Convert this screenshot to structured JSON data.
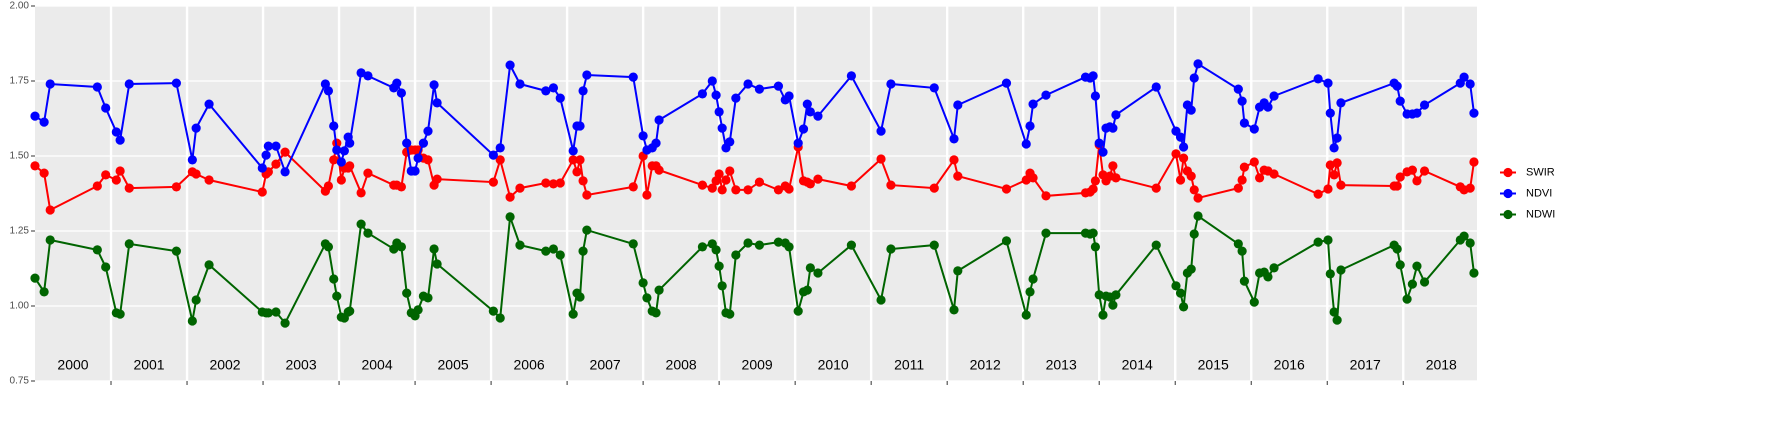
{
  "chart_data": {
    "type": "line",
    "x": [
      2000.0,
      2000.12,
      2000.2,
      2000.82,
      2000.93,
      2001.07,
      2001.12,
      2001.24,
      2001.86,
      2002.07,
      2002.12,
      2002.29,
      2002.99,
      2003.04,
      2003.07,
      2003.17,
      2003.29,
      2003.82,
      2003.86,
      2003.93,
      2003.97,
      2004.03,
      2004.07,
      2004.12,
      2004.14,
      2004.29,
      2004.38,
      2004.72,
      2004.76,
      2004.82,
      2004.89,
      2004.95,
      2005.0,
      2005.04,
      2005.11,
      2005.17,
      2005.25,
      2005.29,
      2006.03,
      2006.12,
      2006.25,
      2006.38,
      2006.72,
      2006.82,
      2006.91,
      2007.08,
      2007.13,
      2007.17,
      2007.21,
      2007.26,
      2007.87,
      2008.0,
      2008.05,
      2008.12,
      2008.17,
      2008.21,
      2008.78,
      2008.91,
      2008.96,
      2009.0,
      2009.04,
      2009.09,
      2009.14,
      2009.22,
      2009.38,
      2009.53,
      2009.78,
      2009.87,
      2009.92,
      2010.04,
      2010.11,
      2010.16,
      2010.2,
      2010.3,
      2010.74,
      2011.13,
      2011.26,
      2011.83,
      2012.09,
      2012.14,
      2012.78,
      2013.04,
      2013.09,
      2013.13,
      2013.3,
      2013.82,
      2013.88,
      2013.92,
      2013.95,
      2014.0,
      2014.05,
      2014.09,
      2014.14,
      2014.18,
      2014.22,
      2014.75,
      2015.01,
      2015.07,
      2015.11,
      2015.16,
      2015.21,
      2015.25,
      2015.3,
      2015.83,
      2015.88,
      2015.91,
      2016.04,
      2016.11,
      2016.17,
      2016.22,
      2016.3,
      2016.88,
      2017.01,
      2017.04,
      2017.09,
      2017.13,
      2017.18,
      2017.88,
      2017.92,
      2017.96,
      2018.05,
      2018.12,
      2018.18,
      2018.28,
      2018.75,
      2018.8,
      2018.88,
      2018.93
    ],
    "series": [
      {
        "name": "SWIR",
        "color": "#ff0000",
        "values": [
          1.467,
          1.443,
          1.32,
          1.4,
          1.437,
          1.42,
          1.45,
          1.393,
          1.397,
          1.447,
          1.44,
          1.42,
          1.38,
          1.44,
          1.447,
          1.473,
          1.513,
          1.383,
          1.4,
          1.487,
          1.543,
          1.42,
          1.46,
          1.46,
          1.467,
          1.377,
          1.443,
          1.403,
          1.403,
          1.397,
          1.513,
          1.52,
          1.52,
          1.52,
          1.493,
          1.487,
          1.403,
          1.423,
          1.413,
          1.487,
          1.363,
          1.393,
          1.41,
          1.407,
          1.41,
          1.487,
          1.447,
          1.487,
          1.417,
          1.37,
          1.397,
          1.5,
          1.37,
          1.467,
          1.467,
          1.453,
          1.403,
          1.393,
          1.417,
          1.44,
          1.387,
          1.42,
          1.45,
          1.387,
          1.387,
          1.413,
          1.387,
          1.4,
          1.39,
          1.53,
          1.417,
          1.413,
          1.407,
          1.423,
          1.4,
          1.49,
          1.403,
          1.393,
          1.487,
          1.433,
          1.39,
          1.42,
          1.443,
          1.427,
          1.367,
          1.377,
          1.38,
          1.39,
          1.417,
          1.537,
          1.437,
          1.417,
          1.433,
          1.467,
          1.427,
          1.393,
          1.507,
          1.42,
          1.493,
          1.45,
          1.433,
          1.387,
          1.36,
          1.393,
          1.42,
          1.463,
          1.48,
          1.427,
          1.453,
          1.45,
          1.44,
          1.373,
          1.39,
          1.47,
          1.437,
          1.477,
          1.403,
          1.4,
          1.4,
          1.43,
          1.447,
          1.453,
          1.417,
          1.45,
          1.397,
          1.387,
          1.393,
          1.48
        ]
      },
      {
        "name": "NDVI",
        "color": "#0000ff",
        "values": [
          1.633,
          1.613,
          1.74,
          1.73,
          1.66,
          1.58,
          1.553,
          1.74,
          1.743,
          1.487,
          1.593,
          1.673,
          1.46,
          1.503,
          1.533,
          1.533,
          1.447,
          1.74,
          1.717,
          1.6,
          1.52,
          1.48,
          1.517,
          1.563,
          1.543,
          1.777,
          1.767,
          1.727,
          1.743,
          1.71,
          1.543,
          1.45,
          1.45,
          1.493,
          1.543,
          1.583,
          1.737,
          1.677,
          1.503,
          1.527,
          1.803,
          1.74,
          1.717,
          1.727,
          1.693,
          1.517,
          1.6,
          1.6,
          1.717,
          1.77,
          1.763,
          1.567,
          1.52,
          1.527,
          1.543,
          1.62,
          1.707,
          1.75,
          1.703,
          1.647,
          1.593,
          1.527,
          1.547,
          1.693,
          1.74,
          1.723,
          1.733,
          1.687,
          1.7,
          1.543,
          1.59,
          1.673,
          1.647,
          1.633,
          1.767,
          1.583,
          1.74,
          1.727,
          1.557,
          1.67,
          1.743,
          1.54,
          1.6,
          1.673,
          1.703,
          1.763,
          1.76,
          1.767,
          1.7,
          1.543,
          1.513,
          1.593,
          1.597,
          1.593,
          1.637,
          1.73,
          1.583,
          1.563,
          1.53,
          1.67,
          1.653,
          1.76,
          1.807,
          1.723,
          1.683,
          1.61,
          1.59,
          1.663,
          1.677,
          1.663,
          1.7,
          1.757,
          1.743,
          1.643,
          1.527,
          1.56,
          1.677,
          1.743,
          1.733,
          1.683,
          1.64,
          1.64,
          1.643,
          1.67,
          1.743,
          1.763,
          1.74,
          1.643
        ]
      },
      {
        "name": "NDWI",
        "color": "#006400",
        "values": [
          1.093,
          1.047,
          1.22,
          1.187,
          1.13,
          0.977,
          0.973,
          1.207,
          1.183,
          0.95,
          1.02,
          1.137,
          0.98,
          0.977,
          0.977,
          0.98,
          0.943,
          1.207,
          1.197,
          1.09,
          1.033,
          0.963,
          0.96,
          0.98,
          0.983,
          1.273,
          1.243,
          1.19,
          1.21,
          1.197,
          1.043,
          0.977,
          0.967,
          0.987,
          1.033,
          1.027,
          1.19,
          1.14,
          0.983,
          0.96,
          1.297,
          1.203,
          1.183,
          1.19,
          1.17,
          0.973,
          1.043,
          1.03,
          1.183,
          1.253,
          1.207,
          1.077,
          1.027,
          0.983,
          0.977,
          1.053,
          1.197,
          1.207,
          1.187,
          1.133,
          1.067,
          0.977,
          0.973,
          1.17,
          1.21,
          1.203,
          1.213,
          1.21,
          1.197,
          0.983,
          1.047,
          1.053,
          1.127,
          1.11,
          1.203,
          1.02,
          1.19,
          1.203,
          0.987,
          1.117,
          1.217,
          0.97,
          1.047,
          1.09,
          1.243,
          1.243,
          1.24,
          1.243,
          1.197,
          1.037,
          0.97,
          1.033,
          1.03,
          1.003,
          1.037,
          1.203,
          1.067,
          1.043,
          0.997,
          1.11,
          1.123,
          1.24,
          1.3,
          1.207,
          1.183,
          1.083,
          1.013,
          1.11,
          1.113,
          1.097,
          1.127,
          1.213,
          1.22,
          1.107,
          0.98,
          0.953,
          1.12,
          1.203,
          1.19,
          1.137,
          1.023,
          1.073,
          1.133,
          1.08,
          1.22,
          1.233,
          1.21,
          1.11
        ]
      }
    ],
    "xlim": [
      2000,
      2018.97
    ],
    "xticks": [
      2001,
      2002,
      2003,
      2004,
      2005,
      2006,
      2007,
      2008,
      2009,
      2010,
      2011,
      2012,
      2013,
      2014,
      2015,
      2016,
      2017,
      2018
    ],
    "ylim": [
      0.75,
      2.0
    ],
    "yticks": [
      {
        "value": 0.75,
        "label": "0.75"
      },
      {
        "value": 1.0,
        "label": "1.00"
      },
      {
        "value": 1.25,
        "label": "1.25"
      },
      {
        "value": 1.5,
        "label": "1.50"
      },
      {
        "value": 1.75,
        "label": "1.75"
      },
      {
        "value": 2.0,
        "label": "2.00"
      }
    ],
    "annotations": [
      {
        "text": "2000",
        "x": 2000.5
      },
      {
        "text": "2001",
        "x": 2001.5
      },
      {
        "text": "2002",
        "x": 2002.5
      },
      {
        "text": "2003",
        "x": 2003.5
      },
      {
        "text": "2004",
        "x": 2004.5
      },
      {
        "text": "2005",
        "x": 2005.5
      },
      {
        "text": "2006",
        "x": 2006.5
      },
      {
        "text": "2007",
        "x": 2007.5
      },
      {
        "text": "2008",
        "x": 2008.5
      },
      {
        "text": "2009",
        "x": 2009.5
      },
      {
        "text": "2010",
        "x": 2010.5
      },
      {
        "text": "2011",
        "x": 2011.5
      },
      {
        "text": "2012",
        "x": 2012.5
      },
      {
        "text": "2013",
        "x": 2013.5
      },
      {
        "text": "2014",
        "x": 2014.5
      },
      {
        "text": "2015",
        "x": 2015.5
      },
      {
        "text": "2016",
        "x": 2016.5
      },
      {
        "text": "2017",
        "x": 2017.5
      },
      {
        "text": "2018",
        "x": 2018.5
      }
    ],
    "grid": true,
    "legend": "right"
  }
}
